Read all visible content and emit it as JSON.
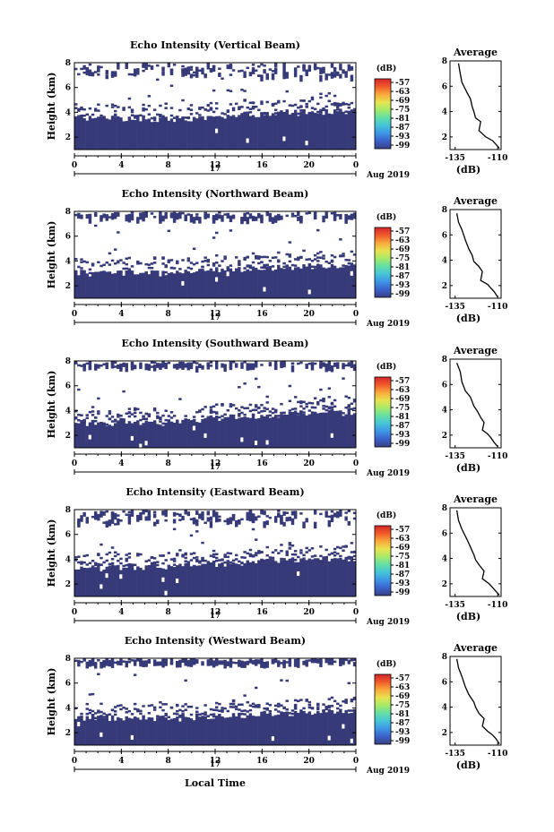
{
  "figure": {
    "xlabel": "Local Time",
    "date_label": "Aug 2019",
    "day_label": "17",
    "x_ticks": [
      "0",
      "4",
      "8",
      "12",
      "16",
      "20",
      "0"
    ],
    "y_ticks": [
      "2",
      "4",
      "6",
      "8"
    ],
    "colorbar_unit": "(dB)",
    "colorbar_ticks": [
      "-57",
      "-63",
      "-69",
      "-75",
      "-81",
      "-87",
      "-93",
      "-99"
    ],
    "colorbar_colors": [
      "#3b3f86",
      "#3a62c8",
      "#3e95e6",
      "#45c4d8",
      "#63dfa6",
      "#a6ea6a",
      "#e7e34f",
      "#f8a93c",
      "#f05a2a",
      "#d6262b"
    ],
    "fill_color": "#373a78",
    "avg_title": "Average",
    "avg_xlabel": "(dB)"
  },
  "chart_data": [
    {
      "type": "heatmap",
      "title": "Echo Intensity (Vertical Beam)",
      "ylabel": "Height (km)",
      "xlim": [
        0,
        24
      ],
      "ylim": [
        1,
        8
      ],
      "layer_top_km": [
        [
          0,
          3.6
        ],
        [
          4,
          3.5
        ],
        [
          8,
          3.4
        ],
        [
          12,
          3.6
        ],
        [
          16,
          3.8
        ],
        [
          20,
          4.0
        ],
        [
          24,
          4.1
        ]
      ],
      "aloft_km": [
        7.0,
        8.0
      ],
      "profile": {
        "title": "Average",
        "xlabel": "(dB)",
        "xticks": [
          "-135",
          "-110"
        ],
        "xlim": [
          -138,
          -108
        ],
        "ylim": [
          1,
          8
        ],
        "x": [
          -133,
          -132,
          -131,
          -128,
          -126,
          -125,
          -124,
          -123,
          -120,
          -121,
          -117,
          -113,
          -111,
          -109
        ],
        "y": [
          7.8,
          7.0,
          6.3,
          5.5,
          5.0,
          4.4,
          4.0,
          3.5,
          3.2,
          2.5,
          2.0,
          1.7,
          1.4,
          1.1
        ],
        "ytick_labels": [
          "2",
          "4",
          "6",
          "8"
        ]
      }
    },
    {
      "type": "heatmap",
      "title": "Echo Intensity (Northward Beam)",
      "ylabel": "Height (km)",
      "xlim": [
        0,
        24
      ],
      "ylim": [
        1,
        8
      ],
      "layer_top_km": [
        [
          0,
          3.0
        ],
        [
          4,
          3.0
        ],
        [
          8,
          3.0
        ],
        [
          12,
          3.2
        ],
        [
          16,
          3.4
        ],
        [
          20,
          3.5
        ],
        [
          24,
          3.6
        ]
      ],
      "aloft_km": [
        7.5,
        8.0
      ],
      "profile": {
        "title": "Average",
        "xlabel": "(dB)",
        "xticks": [
          "-135",
          "-110"
        ],
        "xlim": [
          -138,
          -108
        ],
        "ylim": [
          1,
          8
        ],
        "x": [
          -134,
          -133,
          -131,
          -129,
          -127,
          -125,
          -124,
          -121,
          -119,
          -120,
          -116,
          -114,
          -112,
          -110
        ],
        "y": [
          7.7,
          7.0,
          6.4,
          5.6,
          4.9,
          4.4,
          3.9,
          3.5,
          3.1,
          2.4,
          2.1,
          1.8,
          1.5,
          1.1
        ],
        "ytick_labels": [
          "2",
          "4",
          "6",
          "8"
        ]
      }
    },
    {
      "type": "heatmap",
      "title": "Echo Intensity (Southward Beam)",
      "ylabel": "Height (km)",
      "xlim": [
        0,
        24
      ],
      "ylim": [
        1,
        8
      ],
      "layer_top_km": [
        [
          0,
          3.0
        ],
        [
          4,
          3.0
        ],
        [
          8,
          3.0
        ],
        [
          12,
          3.4
        ],
        [
          16,
          3.6
        ],
        [
          20,
          3.8
        ],
        [
          24,
          3.8
        ]
      ],
      "aloft_km": [
        7.6,
        8.0
      ],
      "profile": {
        "title": "Average",
        "xlabel": "(dB)",
        "xticks": [
          "-135",
          "-110"
        ],
        "xlim": [
          -138,
          -108
        ],
        "ylim": [
          1,
          8
        ],
        "x": [
          -134,
          -132,
          -131,
          -129,
          -126,
          -124,
          -122,
          -120,
          -118,
          -119,
          -116,
          -114,
          -112,
          -110
        ],
        "y": [
          7.7,
          7.0,
          6.2,
          5.5,
          5.0,
          4.3,
          3.9,
          3.4,
          3.0,
          2.4,
          2.1,
          1.8,
          1.4,
          1.1
        ],
        "ytick_labels": [
          "2",
          "4",
          "6",
          "8"
        ]
      }
    },
    {
      "type": "heatmap",
      "title": "Echo Intensity (Eastward Beam)",
      "ylabel": "Height (km)",
      "xlim": [
        0,
        24
      ],
      "ylim": [
        1,
        8
      ],
      "layer_top_km": [
        [
          0,
          3.2
        ],
        [
          4,
          3.3
        ],
        [
          8,
          3.4
        ],
        [
          12,
          3.6
        ],
        [
          16,
          3.8
        ],
        [
          20,
          4.0
        ],
        [
          24,
          4.0
        ]
      ],
      "aloft_km": [
        7.0,
        8.0
      ],
      "profile": {
        "title": "Average",
        "xlabel": "(dB)",
        "xticks": [
          "-135",
          "-110"
        ],
        "xlim": [
          -138,
          -108
        ],
        "ylim": [
          1,
          8
        ],
        "x": [
          -134,
          -133,
          -131,
          -128,
          -126,
          -124,
          -123,
          -121,
          -118,
          -119,
          -115,
          -113,
          -111,
          -109
        ],
        "y": [
          7.8,
          7.0,
          6.3,
          5.5,
          4.9,
          4.3,
          3.9,
          3.5,
          3.0,
          2.4,
          2.0,
          1.7,
          1.4,
          1.1
        ],
        "ytick_labels": [
          "2",
          "4",
          "6",
          "8"
        ]
      }
    },
    {
      "type": "heatmap",
      "title": "Echo Intensity (Westward Beam)",
      "ylabel": "Height (km)",
      "xlim": [
        0,
        24
      ],
      "ylim": [
        1,
        8
      ],
      "layer_top_km": [
        [
          0,
          3.2
        ],
        [
          4,
          3.2
        ],
        [
          8,
          3.1
        ],
        [
          12,
          3.3
        ],
        [
          16,
          3.5
        ],
        [
          20,
          3.6
        ],
        [
          24,
          3.7
        ]
      ],
      "aloft_km": [
        7.7,
        8.0
      ],
      "profile": {
        "title": "Average",
        "xlabel": "(dB)",
        "xticks": [
          "-135",
          "-110"
        ],
        "xlim": [
          -138,
          -108
        ],
        "ylim": [
          1,
          8
        ],
        "x": [
          -134,
          -133,
          -131,
          -129,
          -127,
          -124,
          -123,
          -121,
          -118,
          -119,
          -116,
          -113,
          -111,
          -109
        ],
        "y": [
          7.8,
          7.1,
          6.4,
          5.6,
          5.0,
          4.4,
          4.0,
          3.5,
          3.1,
          2.5,
          2.1,
          1.8,
          1.5,
          1.1
        ],
        "ytick_labels": [
          "2",
          "4",
          "6",
          "8"
        ]
      }
    }
  ]
}
